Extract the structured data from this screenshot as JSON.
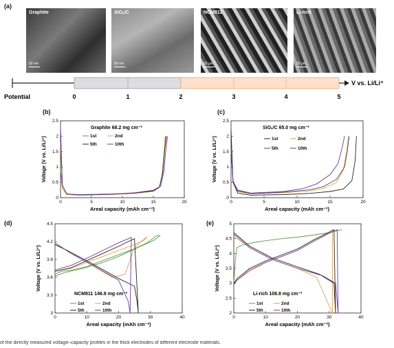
{
  "panel_a": {
    "label": "(a)",
    "images": [
      {
        "label": "Graphite",
        "scale": "50 nm"
      },
      {
        "label": "SiOₓ/C",
        "scale": "50 nm"
      },
      {
        "label": "NCM811",
        "scale": "20 μm"
      },
      {
        "label": "Li-rich",
        "scale": "20 μm"
      }
    ],
    "potential_label": "Potential",
    "axis_label": "V vs. Li/Li⁺",
    "ticks": [
      "0",
      "1",
      "2",
      "3",
      "4",
      "5"
    ]
  },
  "chart_data": [
    {
      "panel": "(b)",
      "type": "line",
      "title": "Graphite 68.2 mg cm⁻²",
      "xlabel": "Areal capacity (mAh cm⁻²)",
      "ylabel": "Voltage (V vs. Li/Li⁺)",
      "xlim": [
        0,
        20
      ],
      "ylim": [
        0,
        2.5
      ],
      "xticks": [
        "0",
        "5",
        "10",
        "15",
        "20"
      ],
      "yticks": [
        "0",
        "0.5",
        "1",
        "1.5",
        "2",
        "2.5"
      ],
      "legend": [
        "1st",
        "2nd",
        "5th",
        "10th"
      ],
      "series": [
        {
          "name": "1st",
          "color": "#5a9a4a",
          "x": [
            0,
            0.3,
            1,
            3,
            8,
            12,
            15,
            16,
            16.5,
            16.8,
            17.0
          ],
          "y": [
            0.9,
            0.3,
            0.12,
            0.1,
            0.12,
            0.15,
            0.22,
            0.35,
            0.8,
            1.5,
            2.0
          ]
        },
        {
          "name": "2nd",
          "color": "#e0a050",
          "x": [
            0,
            0.3,
            1,
            3,
            8,
            12,
            15,
            16,
            16.4,
            16.7,
            16.9
          ],
          "y": [
            1.8,
            0.3,
            0.1,
            0.08,
            0.1,
            0.14,
            0.2,
            0.33,
            0.75,
            1.4,
            2.0
          ]
        },
        {
          "name": "5th",
          "color": "#222222",
          "x": [
            0,
            0.3,
            1,
            3,
            8,
            12,
            15,
            16,
            16.5,
            16.8,
            17.1
          ],
          "y": [
            2.1,
            0.4,
            0.12,
            0.09,
            0.11,
            0.15,
            0.22,
            0.35,
            0.8,
            1.5,
            2.0
          ]
        },
        {
          "name": "10th",
          "color": "#6a3a9a",
          "x": [
            0,
            0.3,
            1,
            3,
            8,
            12,
            15,
            16.2,
            16.7,
            17.0,
            17.3
          ],
          "y": [
            2.3,
            0.4,
            0.12,
            0.09,
            0.11,
            0.16,
            0.24,
            0.38,
            0.85,
            1.5,
            2.0
          ]
        }
      ]
    },
    {
      "panel": "(c)",
      "type": "line",
      "title": "SiOₓ/C 65.0 mg cm⁻²",
      "xlabel": "Areal capacity (mAh cm⁻²)",
      "ylabel": "Voltage (V vs. Li/Li⁺)",
      "xlim": [
        0,
        20
      ],
      "ylim": [
        0,
        2.5
      ],
      "xticks": [
        "0",
        "5",
        "10",
        "15",
        "20"
      ],
      "yticks": [
        "0",
        "0.5",
        "1",
        "1.5",
        "2",
        "2.5"
      ],
      "legend": [
        "1st",
        "2nd",
        "5th",
        "10th"
      ],
      "series": [
        {
          "name": "1st",
          "color": "#222222",
          "x": [
            0,
            0.3,
            1,
            3,
            8,
            12,
            15,
            17,
            18.3,
            18.8,
            19.0
          ],
          "y": [
            2.2,
            0.5,
            0.15,
            0.08,
            0.1,
            0.14,
            0.2,
            0.28,
            0.55,
            1.2,
            2.0
          ]
        },
        {
          "name": "2nd",
          "color": "#e0a050",
          "x": [
            0,
            0.3,
            1,
            3,
            8,
            12,
            14,
            16,
            17.0,
            17.5,
            17.8
          ],
          "y": [
            1.5,
            0.5,
            0.2,
            0.12,
            0.16,
            0.22,
            0.3,
            0.5,
            0.9,
            1.5,
            2.0
          ]
        },
        {
          "name": "5th",
          "color": "#4a4a4a",
          "x": [
            0,
            0.3,
            1,
            3,
            8,
            12,
            14,
            16,
            17.2,
            17.6,
            17.9
          ],
          "y": [
            1.6,
            0.5,
            0.22,
            0.13,
            0.18,
            0.26,
            0.36,
            0.6,
            1.0,
            1.5,
            2.0
          ]
        },
        {
          "name": "10th",
          "color": "#6a3a9a",
          "x": [
            0,
            0.3,
            1,
            3,
            8,
            11,
            13,
            15,
            16.2,
            16.8,
            17.2
          ],
          "y": [
            1.6,
            0.55,
            0.25,
            0.15,
            0.2,
            0.3,
            0.45,
            0.75,
            1.1,
            1.6,
            2.0
          ]
        }
      ]
    },
    {
      "panel": "(d)",
      "type": "line",
      "title": "NCM811 146.9 mg cm⁻²",
      "xlabel": "Areal capacity (mAh cm⁻²)",
      "ylabel": "Voltage (V vs. Li/Li⁺)",
      "xlim": [
        0,
        40
      ],
      "ylim": [
        3.0,
        4.5
      ],
      "xticks": [
        "0",
        "10",
        "20",
        "30",
        "40"
      ],
      "yticks": [
        "3",
        "3.3",
        "3.6",
        "3.9",
        "4.2",
        "4.5"
      ],
      "legend": [
        "1st",
        "2nd",
        "5th",
        "10th"
      ],
      "series": [
        {
          "name": "1st",
          "color": "#5a9a4a",
          "x": [
            0,
            2,
            5,
            10,
            15,
            20,
            25,
            29,
            32,
            33,
            31,
            26,
            20,
            14,
            8,
            3,
            0
          ],
          "y": [
            3.65,
            3.7,
            3.72,
            3.78,
            3.88,
            3.98,
            4.08,
            4.18,
            4.3,
            4.3,
            4.22,
            4.1,
            3.95,
            3.83,
            3.74,
            3.68,
            3.62
          ]
        },
        {
          "name": "2nd",
          "color": "#e0a050",
          "x": [
            0,
            5,
            10,
            15,
            20,
            25,
            28,
            29,
            27,
            25,
            22,
            18,
            10,
            4,
            0
          ],
          "y": [
            3.7,
            3.75,
            3.85,
            3.95,
            4.05,
            4.15,
            4.22,
            4.28,
            4.2,
            4.1,
            3.65,
            3.6,
            3.85,
            4.05,
            4.15
          ]
        },
        {
          "name": "5th",
          "color": "#222222",
          "x": [
            0,
            5,
            10,
            15,
            20,
            23,
            25,
            26.2,
            25.8,
            25,
            20,
            12,
            5,
            0
          ],
          "y": [
            3.7,
            3.76,
            3.88,
            4.0,
            4.12,
            4.2,
            4.25,
            3.0,
            3.2,
            3.45,
            3.58,
            3.82,
            4.02,
            4.15
          ]
        },
        {
          "name": "10th",
          "color": "#6a3a9a",
          "x": [
            0,
            5,
            10,
            15,
            20,
            24,
            23.6,
            23,
            20,
            12,
            5,
            0
          ],
          "y": [
            3.72,
            3.8,
            3.92,
            4.05,
            4.18,
            4.27,
            3.0,
            3.2,
            3.55,
            3.8,
            4.0,
            4.18
          ]
        }
      ]
    },
    {
      "panel": "(e)",
      "type": "line",
      "title": "Li-rich 108.8 mg cm⁻²",
      "xlabel": "Areal capacity (mAh cm⁻²)",
      "ylabel": "Voltage (V vs. Li/Li⁺)",
      "xlim": [
        0,
        40
      ],
      "ylim": [
        2,
        5
      ],
      "xticks": [
        "0",
        "10",
        "20",
        "30",
        "40"
      ],
      "yticks": [
        "2",
        "2.5",
        "3",
        "3.5",
        "4",
        "4.5",
        "5"
      ],
      "legend": [
        "1st",
        "2nd",
        "5th",
        "10th"
      ],
      "series": [
        {
          "name": "1st",
          "color": "#5a9a4a",
          "x": [
            0,
            0.5,
            1,
            3,
            8,
            15,
            20,
            25,
            30,
            33,
            34
          ],
          "y": [
            3.0,
            3.8,
            4.2,
            4.3,
            4.4,
            4.5,
            4.55,
            4.62,
            4.7,
            4.78,
            4.8
          ]
        },
        {
          "name": "2nd",
          "color": "#e0a050",
          "x": [
            0,
            1,
            5,
            10,
            15,
            20,
            25,
            30,
            31,
            31,
            26,
            20,
            12,
            5,
            1,
            0
          ],
          "y": [
            3.0,
            3.1,
            3.4,
            3.7,
            3.9,
            4.1,
            4.4,
            4.7,
            4.8,
            2.0,
            3.2,
            3.5,
            3.8,
            4.2,
            4.5,
            4.6
          ]
        },
        {
          "name": "5th",
          "color": "#222222",
          "x": [
            0,
            1,
            5,
            10,
            15,
            20,
            25,
            30,
            31.5,
            32,
            31.5,
            27,
            20,
            12,
            5,
            0
          ],
          "y": [
            3.0,
            3.15,
            3.5,
            3.75,
            3.95,
            4.15,
            4.45,
            4.72,
            4.8,
            2.0,
            3.0,
            3.3,
            3.55,
            3.85,
            4.25,
            4.7
          ]
        },
        {
          "name": "10th",
          "color": "#6a3a9a",
          "x": [
            0,
            1,
            5,
            10,
            15,
            20,
            25,
            30,
            32.5,
            32.8,
            32,
            28,
            20,
            12,
            5,
            0
          ],
          "y": [
            2.95,
            3.1,
            3.45,
            3.7,
            3.9,
            4.1,
            4.4,
            4.68,
            4.8,
            2.0,
            3.0,
            3.25,
            3.5,
            3.8,
            4.2,
            4.65
          ]
        }
      ]
    }
  ],
  "caption": "of the directly measured voltage–capacity profiles in the thick electrodes of different electrode materials."
}
